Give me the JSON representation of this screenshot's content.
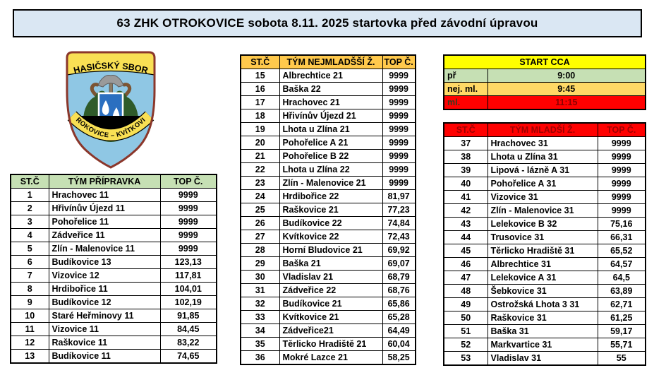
{
  "title": "63 ZHK OTROKOVICE sobota 8.11. 2025 startovka před závodní úpravou",
  "logo": {
    "top_text": "HASIČSKÝ SBOR",
    "bottom_text": "OTROKOVICE – KVÍTKOVICE"
  },
  "colors": {
    "title_bg": "#DAE7F3",
    "green": "#C6E0B4",
    "amber": "#FFD966",
    "gold": "#FFC94C",
    "yellow": "#FFFF00",
    "red": "#FF0000",
    "dark_red_text": "#9C0000"
  },
  "tables": {
    "pripravka": {
      "headers": [
        "ST.Č",
        "TÝM PŘÍPRAVKA",
        "TOP Č."
      ],
      "header_bg": "#C6E0B4",
      "rows": [
        [
          "1",
          "Hrachovec 11",
          "9999"
        ],
        [
          "2",
          "Hřivínův Újezd 11",
          "9999"
        ],
        [
          "3",
          "Pohořelice 11",
          "9999"
        ],
        [
          "4",
          "Zádveřice 11",
          "9999"
        ],
        [
          "5",
          "Zlín - Malenovice 11",
          "9999"
        ],
        [
          "6",
          "Budíkovice 13",
          "123,13"
        ],
        [
          "7",
          "Vizovice 12",
          "117,81"
        ],
        [
          "8",
          "Hrdibořice 11",
          "104,01"
        ],
        [
          "9",
          "Budíkovice 12",
          "102,19"
        ],
        [
          "10",
          "Staré Heřminovy 11",
          "91,85"
        ],
        [
          "11",
          "Vizovice 11",
          "84,45"
        ],
        [
          "12",
          "Raškovice 11",
          "83,22"
        ],
        [
          "13",
          "Budíkovice 11",
          "74,65"
        ]
      ]
    },
    "nejmladsi": {
      "headers": [
        "ST.Č",
        "TÝM NEJMLADŠŠÍ Ž.",
        "TOP Č."
      ],
      "header_bg": "#FFC94C",
      "rows": [
        [
          "15",
          "Albrechtice 21",
          "9999"
        ],
        [
          "16",
          "Baška 22",
          "9999"
        ],
        [
          "17",
          "Hrachovec 21",
          "9999"
        ],
        [
          "18",
          "Hřivínův Újezd 21",
          "9999"
        ],
        [
          "19",
          "Lhota u Zlína 21",
          "9999"
        ],
        [
          "20",
          "Pohořelice A 21",
          "9999"
        ],
        [
          "21",
          "Pohořelice B 22",
          "9999"
        ],
        [
          "22",
          "Lhota u Zlína 22",
          "9999"
        ],
        [
          "23",
          "Zlín - Malenovice 21",
          "9999"
        ],
        [
          "24",
          "Hrdibořice 22",
          "81,97"
        ],
        [
          "25",
          "Raškovice 21",
          "77,23"
        ],
        [
          "26",
          "Budíkovice 22",
          "74,84"
        ],
        [
          "27",
          "Kvítkovice 22",
          "72,43"
        ],
        [
          "28",
          "Horní Bludovice 21",
          "69,92"
        ],
        [
          "29",
          "Baška 21",
          "69,07"
        ],
        [
          "30",
          "Vladislav 21",
          "68,79"
        ],
        [
          "31",
          "Zádveřice 22",
          "68,76"
        ],
        [
          "32",
          "Budíkovice 21",
          "65,86"
        ],
        [
          "33",
          "Kvítkovice 21",
          "65,28"
        ],
        [
          "34",
          "Zádveřice21",
          "64,49"
        ],
        [
          "35",
          "Těrlicko Hradiště 21",
          "60,04"
        ],
        [
          "36",
          "Mokré Lazce 21",
          "58,25"
        ]
      ]
    },
    "start_cca": {
      "title": "START CCA",
      "header_bg": "#FFFF00",
      "rows": [
        {
          "label": "př",
          "value": "9:00",
          "bg": "#C6E0B4",
          "label_color": "#000000",
          "value_color": "#000000"
        },
        {
          "label": "nej. ml.",
          "value": "9:45",
          "bg": "#FFD966",
          "label_color": "#000000",
          "value_color": "#000000"
        },
        {
          "label": "ml.",
          "value": "11:15",
          "bg": "#FF0000",
          "label_color": "#3A3A20",
          "value_color": "#8B0000"
        }
      ]
    },
    "mladsi": {
      "headers": [
        "ST.Č",
        "TÝM MLADŠÍ Ž.",
        "TOP Č."
      ],
      "header_bg": "#FF0000",
      "header_color": "#9C0000",
      "rows": [
        [
          "37",
          "Hrachovec 31",
          "9999"
        ],
        [
          "38",
          "Lhota u Zlína 31",
          "9999"
        ],
        [
          "39",
          "Lipová - lázně A 31",
          "9999"
        ],
        [
          "40",
          "Pohořelice A 31",
          "9999"
        ],
        [
          "41",
          "Vizovice 31",
          "9999"
        ],
        [
          "42",
          "Zlín - Malenovice 31",
          "9999"
        ],
        [
          "43",
          "Lelekovice B 32",
          "75,16"
        ],
        [
          "44",
          "Trusovice 31",
          "66,31"
        ],
        [
          "45",
          "Těrlicko Hradiště 31",
          "65,52"
        ],
        [
          "46",
          "Albrechtice 31",
          "64,57"
        ],
        [
          "47",
          "Lelekovice A 31",
          "64,5"
        ],
        [
          "48",
          "Šebkovice 31",
          "63,89"
        ],
        [
          "49",
          "Ostrožská Lhota 3 31",
          "62,71"
        ],
        [
          "50",
          "Raškovice 31",
          "61,25"
        ],
        [
          "51",
          "Baška 31",
          "59,17"
        ],
        [
          "52",
          "Markvartice 31",
          "55,71"
        ],
        [
          "53",
          "Vladislav 31",
          "55"
        ]
      ]
    }
  }
}
